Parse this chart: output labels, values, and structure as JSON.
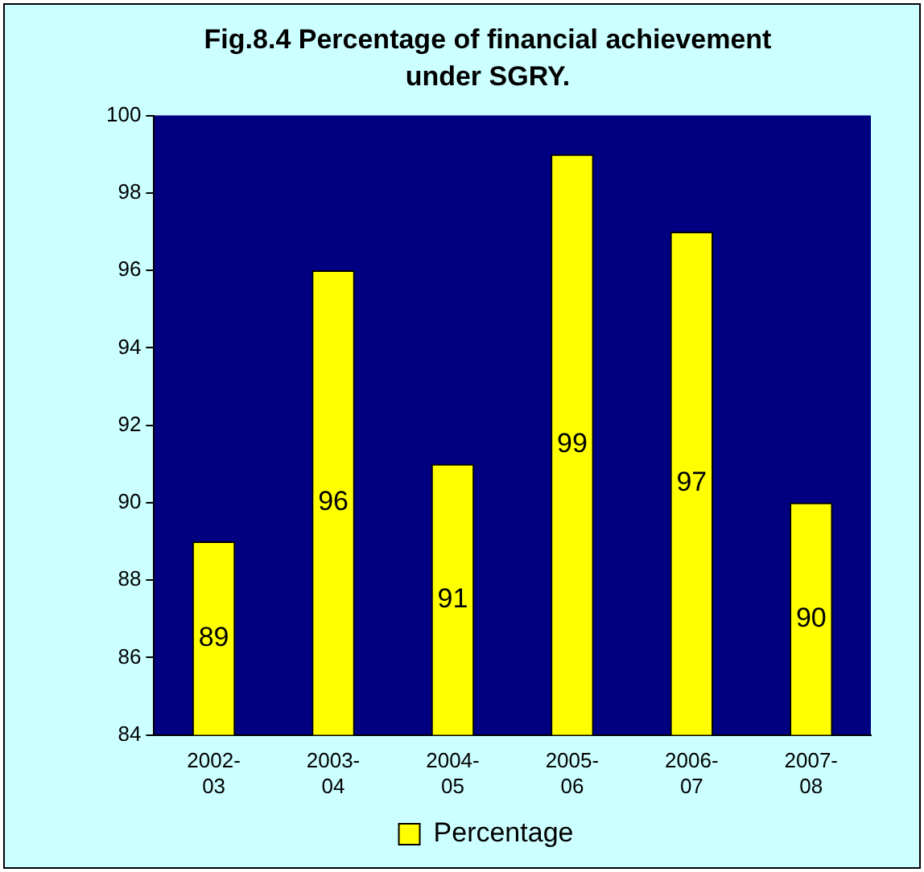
{
  "chart_data": {
    "type": "bar",
    "title": "Fig.8.4  Percentage of financial achievement under SGRY.",
    "categories": [
      "2002-03",
      "2003-04",
      "2004-05",
      "2005-06",
      "2006-07",
      "2007-08"
    ],
    "series": [
      {
        "name": "Percentage",
        "color": "#ffff00",
        "values": [
          89,
          96,
          91,
          99,
          97,
          90
        ]
      }
    ],
    "ylim": [
      84,
      100
    ],
    "yticks": [
      84,
      86,
      88,
      90,
      92,
      94,
      96,
      98,
      100
    ],
    "grid": false,
    "legend": "bottom",
    "data_labels": true
  }
}
